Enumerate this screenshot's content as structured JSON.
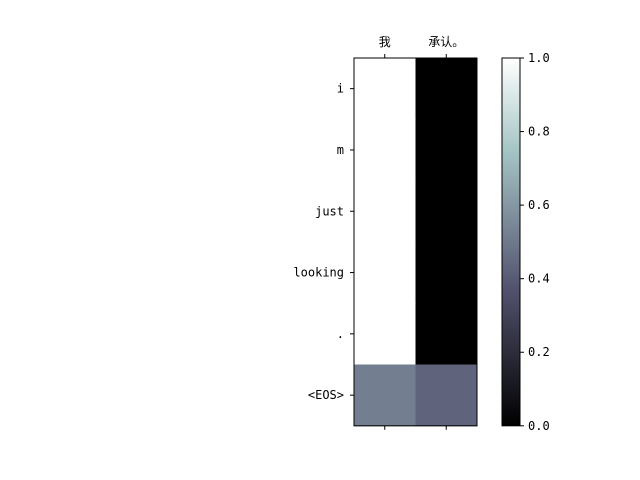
{
  "chart_data": {
    "type": "heatmap",
    "title": "",
    "xlabel": "",
    "ylabel": "",
    "x_tick_labels": [
      "我",
      "承认。"
    ],
    "y_tick_labels": [
      "i",
      "m",
      "just",
      "looking",
      ".",
      "<EOS>"
    ],
    "values": [
      [
        1.0,
        0.0
      ],
      [
        1.0,
        0.0
      ],
      [
        1.0,
        0.0
      ],
      [
        1.0,
        0.0
      ],
      [
        1.0,
        0.0
      ],
      [
        0.52,
        0.43
      ]
    ],
    "colormap": "bone",
    "vmin": 0.0,
    "vmax": 1.0,
    "colorbar": {
      "ticks": [
        0.0,
        0.2,
        0.4,
        0.6,
        0.8,
        1.0
      ],
      "tick_labels": [
        "0.0",
        "0.2",
        "0.4",
        "0.6",
        "0.8",
        "1.0"
      ]
    }
  }
}
